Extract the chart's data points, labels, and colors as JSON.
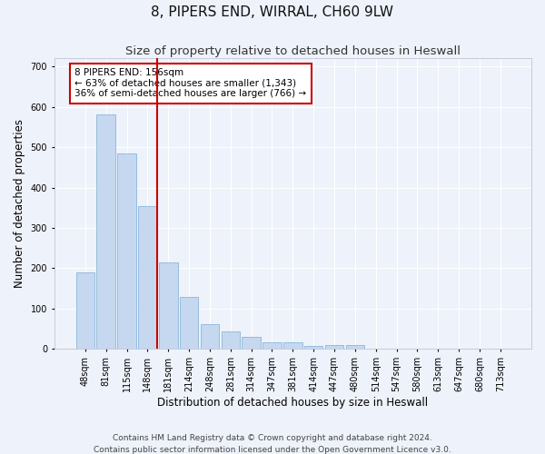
{
  "title": "8, PIPERS END, WIRRAL, CH60 9LW",
  "subtitle": "Size of property relative to detached houses in Heswall",
  "xlabel": "Distribution of detached houses by size in Heswall",
  "ylabel": "Number of detached properties",
  "categories": [
    "48sqm",
    "81sqm",
    "115sqm",
    "148sqm",
    "181sqm",
    "214sqm",
    "248sqm",
    "281sqm",
    "314sqm",
    "347sqm",
    "381sqm",
    "414sqm",
    "447sqm",
    "480sqm",
    "514sqm",
    "547sqm",
    "580sqm",
    "613sqm",
    "647sqm",
    "680sqm",
    "713sqm"
  ],
  "values": [
    190,
    580,
    485,
    355,
    215,
    130,
    62,
    44,
    30,
    16,
    16,
    8,
    10,
    10,
    0,
    0,
    0,
    0,
    0,
    0,
    0
  ],
  "bar_color": "#c5d8f0",
  "bar_edge_color": "#7badd4",
  "vline_x_index": 3,
  "vline_color": "#cc0000",
  "annotation_text": "8 PIPERS END: 156sqm\n← 63% of detached houses are smaller (1,343)\n36% of semi-detached houses are larger (766) →",
  "annotation_box_color": "#ffffff",
  "annotation_box_edgecolor": "#cc0000",
  "ylim": [
    0,
    720
  ],
  "yticks": [
    0,
    100,
    200,
    300,
    400,
    500,
    600,
    700
  ],
  "footer_line1": "Contains HM Land Registry data © Crown copyright and database right 2024.",
  "footer_line2": "Contains public sector information licensed under the Open Government Licence v3.0.",
  "background_color": "#eef2fa",
  "grid_color": "#ffffff",
  "title_fontsize": 11,
  "subtitle_fontsize": 9.5,
  "axis_label_fontsize": 8.5,
  "tick_fontsize": 7,
  "annotation_fontsize": 7.5,
  "footer_fontsize": 6.5
}
